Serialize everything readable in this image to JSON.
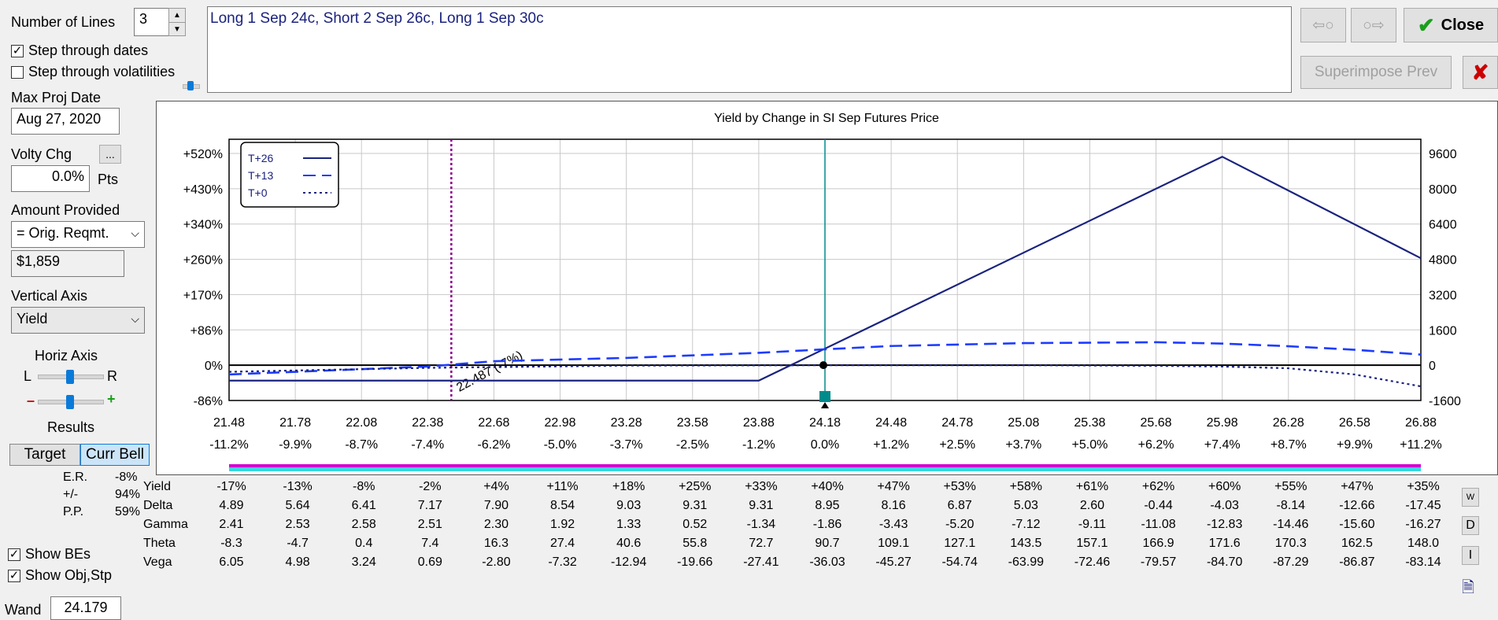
{
  "controls": {
    "num_lines_label": "Number of Lines",
    "num_lines_value": "3",
    "step_dates_label": "Step through dates",
    "step_dates_checked": true,
    "step_vols_label": "Step through volatilities",
    "step_vols_checked": false,
    "max_proj_date_label": "Max Proj Date",
    "max_proj_date_value": "Aug 27, 2020",
    "volty_chg_label": "Volty Chg",
    "volty_btn": "...",
    "volty_value": "0.0%",
    "volty_unit": "Pts",
    "amount_provided_label": "Amount Provided",
    "amount_provided_select": "= Orig. Reqmt.",
    "amount_value": "$1,859",
    "vertical_axis_label": "Vertical Axis",
    "vertical_axis_select": "Yield",
    "horiz_axis_label": "Horiz Axis",
    "horiz_l": "L",
    "horiz_r": "R",
    "minus": "–",
    "plus": "+",
    "results_label": "Results",
    "target_tab": "Target",
    "curr_bell_tab": "Curr Bell",
    "er_label": "E.R.",
    "er_value": "-8%",
    "pm_label": "+/-",
    "pm_value": "94%",
    "pp_label": "P.P.",
    "pp_value": "59%",
    "show_bes_label": "Show BEs",
    "show_bes_checked": true,
    "show_obj_label": "Show Obj,Stp",
    "show_obj_checked": true,
    "wand_label": "Wand",
    "wand_value": "24.179"
  },
  "strategy_text": "Long 1 Sep 24c, Short 2 Sep 26c, Long 1 Sep 30c",
  "buttons": {
    "close": "Close",
    "superimpose": "Superimpose Prev",
    "prev_icon": "⇦○",
    "next_icon": "○⇨"
  },
  "side_buttons": [
    "W",
    "D",
    "I"
  ],
  "chart_data": {
    "type": "line",
    "title": "Yield by Change in SI Sep Futures Price",
    "x": [
      21.48,
      21.78,
      22.08,
      22.38,
      22.68,
      22.98,
      23.28,
      23.58,
      23.88,
      24.18,
      24.48,
      24.78,
      25.08,
      25.38,
      25.68,
      25.98,
      26.28,
      26.58,
      26.88
    ],
    "x_tick_labels": [
      "21.48",
      "21.78",
      "22.08",
      "22.38",
      "22.68",
      "22.98",
      "23.28",
      "23.58",
      "23.88",
      "24.18",
      "24.48",
      "24.78",
      "25.08",
      "25.38",
      "25.68",
      "25.98",
      "26.28",
      "26.58",
      "26.88"
    ],
    "x_pct_labels": [
      "-11.2%",
      "-9.9%",
      "-8.7%",
      "-7.4%",
      "-6.2%",
      "-5.0%",
      "-3.7%",
      "-2.5%",
      "-1.2%",
      "0.0%",
      "+1.2%",
      "+2.5%",
      "+3.7%",
      "+5.0%",
      "+6.2%",
      "+7.4%",
      "+8.7%",
      "+9.9%",
      "+11.2%"
    ],
    "y_left_ticks": [
      "+520%",
      "+430%",
      "+340%",
      "+260%",
      "+170%",
      "+86%",
      "0%",
      "-86%"
    ],
    "y_right_ticks": [
      "9600",
      "8000",
      "6400",
      "4800",
      "3200",
      "1600",
      "0",
      "-1600"
    ],
    "ylim_dollars": [
      -1600,
      9600
    ],
    "xlim": [
      21.48,
      26.88
    ],
    "series": [
      {
        "name": "T+26",
        "style": "solid",
        "x": [
          21.48,
          23.88,
          25.98,
          26.88
        ],
        "values": [
          -700,
          -700,
          9450,
          4850
        ]
      },
      {
        "name": "T+13",
        "style": "dash",
        "x": [
          21.48,
          22.38,
          22.68,
          23.28,
          23.88,
          24.18,
          24.48,
          25.08,
          25.68,
          25.98,
          26.28,
          26.58,
          26.88
        ],
        "values": [
          -420,
          -60,
          180,
          330,
          560,
          720,
          870,
          1000,
          1040,
          980,
          860,
          700,
          480
        ]
      },
      {
        "name": "T+0",
        "style": "dot",
        "x": [
          21.48,
          22.38,
          23.28,
          24.18,
          25.08,
          25.68,
          25.98,
          26.28,
          26.58,
          26.88
        ],
        "values": [
          -300,
          -120,
          -20,
          0,
          0,
          -30,
          -60,
          -140,
          -420,
          -960
        ]
      }
    ],
    "legend": [
      "T+26",
      "T+13",
      "T+0"
    ],
    "breakeven_marker": {
      "x": 22.487,
      "label": "22.487 (-7%)"
    },
    "current_price": 24.18
  },
  "greeks": {
    "rows": [
      {
        "label": "Yield",
        "values": [
          "-17%",
          "-13%",
          "-8%",
          "-2%",
          "+4%",
          "+11%",
          "+18%",
          "+25%",
          "+33%",
          "+40%",
          "+47%",
          "+53%",
          "+58%",
          "+61%",
          "+62%",
          "+60%",
          "+55%",
          "+47%",
          "+35%"
        ]
      },
      {
        "label": "Delta",
        "values": [
          "4.89",
          "5.64",
          "6.41",
          "7.17",
          "7.90",
          "8.54",
          "9.03",
          "9.31",
          "9.31",
          "8.95",
          "8.16",
          "6.87",
          "5.03",
          "2.60",
          "-0.44",
          "-4.03",
          "-8.14",
          "-12.66",
          "-17.45"
        ]
      },
      {
        "label": "Gamma",
        "values": [
          "2.41",
          "2.53",
          "2.58",
          "2.51",
          "2.30",
          "1.92",
          "1.33",
          "0.52",
          "-1.34",
          "-1.86",
          "-3.43",
          "-5.20",
          "-7.12",
          "-9.11",
          "-11.08",
          "-12.83",
          "-14.46",
          "-15.60",
          "-16.27"
        ]
      },
      {
        "label": "Theta",
        "values": [
          "-8.3",
          "-4.7",
          "0.4",
          "7.4",
          "16.3",
          "27.4",
          "40.6",
          "55.8",
          "72.7",
          "90.7",
          "109.1",
          "127.1",
          "143.5",
          "157.1",
          "166.9",
          "171.6",
          "170.3",
          "162.5",
          "148.0"
        ]
      },
      {
        "label": "Vega",
        "values": [
          "6.05",
          "4.98",
          "3.24",
          "0.69",
          "-2.80",
          "-7.32",
          "-12.94",
          "-19.66",
          "-27.41",
          "-36.03",
          "-45.27",
          "-54.74",
          "-63.99",
          "-72.46",
          "-79.57",
          "-84.70",
          "-87.29",
          "-86.87",
          "-83.14"
        ]
      }
    ]
  },
  "colors": {
    "series": "#1a237e",
    "series_mid": "#1e3cff",
    "breakeven": "#8b008b",
    "price_line": "#008b8b",
    "close_check": "#1a9e1a",
    "cancel": "#cc0000"
  }
}
